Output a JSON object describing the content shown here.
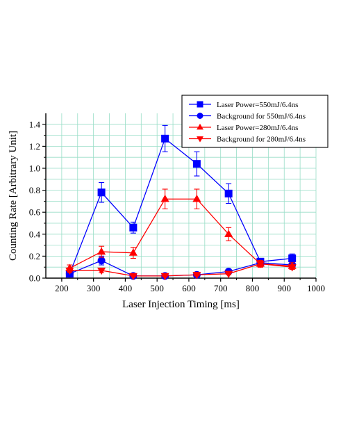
{
  "chart_data": {
    "type": "line",
    "title": "",
    "xlabel": "Laser Injection Timing [ms]",
    "ylabel": "Counting Rate [Arbitrary Unit]",
    "xlim": [
      150,
      1000
    ],
    "ylim": [
      0,
      1.5
    ],
    "x_ticks": [
      200,
      300,
      400,
      500,
      600,
      700,
      800,
      900,
      1000
    ],
    "y_ticks": [
      0.0,
      0.2,
      0.4,
      0.6,
      0.8,
      1.0,
      1.2,
      1.4
    ],
    "x_tick_labels": [
      "200",
      "300",
      "400",
      "500",
      "600",
      "700",
      "800",
      "900",
      "1000"
    ],
    "y_tick_labels": [
      "0.0",
      "0.2",
      "0.4",
      "0.6",
      "0.8",
      "1.0",
      "1.2",
      "1.4"
    ],
    "grid": true,
    "legend_position": "top-right",
    "series": [
      {
        "name": "Laser Power=550mJ/6.4ns",
        "color": "#0000ff",
        "marker": "square",
        "x": [
          225,
          325,
          425,
          525,
          625,
          725,
          825,
          925
        ],
        "y": [
          0.04,
          0.78,
          0.46,
          1.27,
          1.04,
          0.77,
          0.15,
          0.18
        ],
        "err": [
          0.01,
          0.09,
          0.05,
          0.12,
          0.11,
          0.09,
          0.03,
          0.04
        ]
      },
      {
        "name": "Background for 550mJ/6.4ns",
        "color": "#0000ff",
        "marker": "circle",
        "x": [
          225,
          325,
          425,
          525,
          625,
          725,
          825,
          925
        ],
        "y": [
          0.04,
          0.16,
          0.02,
          0.02,
          0.03,
          0.06,
          0.14,
          0.12
        ],
        "err": [
          0.01,
          0.04,
          0.01,
          0.01,
          0.01,
          0.02,
          0.03,
          0.03
        ]
      },
      {
        "name": "Laser Power=280mJ/6.4ns",
        "color": "#ff0000",
        "marker": "triangle-up",
        "x": [
          225,
          325,
          425,
          525,
          625,
          725,
          825,
          925
        ],
        "y": [
          0.09,
          0.24,
          0.23,
          0.72,
          0.72,
          0.4,
          0.13,
          0.11
        ],
        "err": [
          0.03,
          0.05,
          0.05,
          0.09,
          0.09,
          0.06,
          0.03,
          0.03
        ]
      },
      {
        "name": "Background for 280mJ/6.4ns",
        "color": "#ff0000",
        "marker": "triangle-down",
        "x": [
          225,
          325,
          425,
          525,
          625,
          725,
          825,
          925
        ],
        "y": [
          0.07,
          0.07,
          0.02,
          0.02,
          0.03,
          0.04,
          0.13,
          0.1
        ],
        "err": [
          0.02,
          0.02,
          0.01,
          0.01,
          0.01,
          0.01,
          0.03,
          0.02
        ]
      }
    ]
  }
}
